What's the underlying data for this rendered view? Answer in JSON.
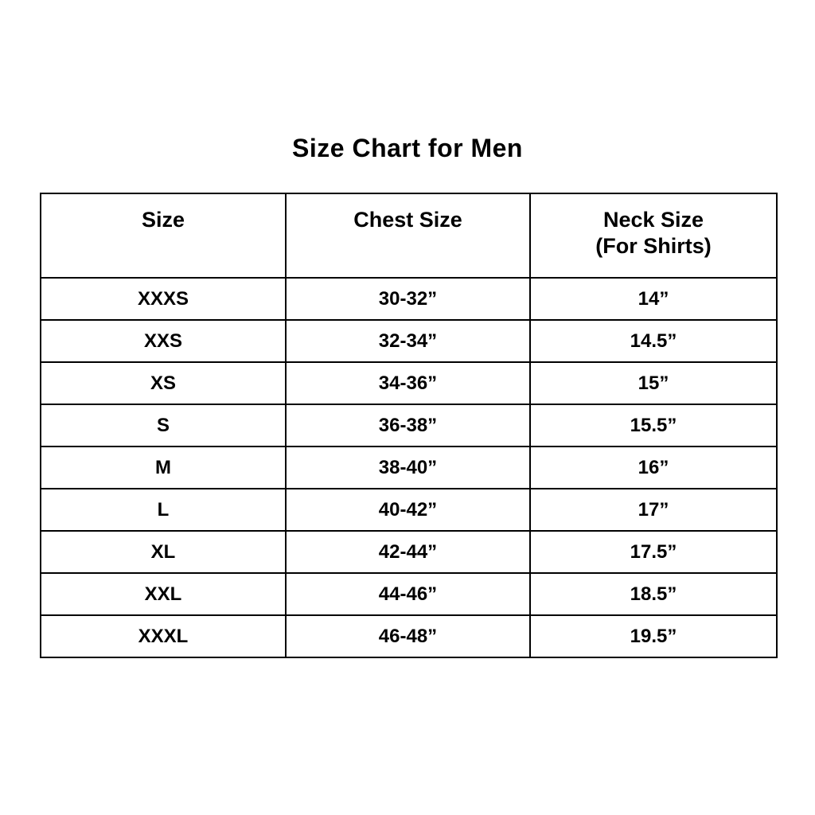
{
  "page": {
    "title": "Size Chart for Men",
    "background": "#ffffff"
  },
  "colors": {
    "text": "#000000",
    "border": "#000000",
    "background": "#ffffff"
  },
  "table": {
    "headers": [
      {
        "line1": "Size",
        "line2": ""
      },
      {
        "line1": "Chest Size",
        "line2": ""
      },
      {
        "line1": "Neck Size",
        "line2": "(For Shirts)"
      }
    ],
    "rows": [
      [
        "XXXS",
        "30-32”",
        "14”"
      ],
      [
        "XXS",
        "32-34”",
        "14.5”"
      ],
      [
        "XS",
        "34-36”",
        "15”"
      ],
      [
        "S",
        "36-38”",
        "15.5”"
      ],
      [
        "M",
        "38-40”",
        "16”"
      ],
      [
        "L",
        "40-42”",
        "17”"
      ],
      [
        "XL",
        "42-44”",
        "17.5”"
      ],
      [
        "XXL",
        "44-46”",
        "18.5”"
      ],
      [
        "XXXL",
        "46-48”",
        "19.5”"
      ]
    ]
  },
  "chart_data": {
    "type": "table",
    "title": "Size Chart for Men",
    "columns": [
      "Size",
      "Chest Size",
      "Neck Size (For Shirts)"
    ],
    "rows": [
      {
        "size": "XXXS",
        "chest_size": "30-32”",
        "neck_size": "14”"
      },
      {
        "size": "XXS",
        "chest_size": "32-34”",
        "neck_size": "14.5”"
      },
      {
        "size": "XS",
        "chest_size": "34-36”",
        "neck_size": "15”"
      },
      {
        "size": "S",
        "chest_size": "36-38”",
        "neck_size": "15.5”"
      },
      {
        "size": "M",
        "chest_size": "38-40”",
        "neck_size": "16”"
      },
      {
        "size": "L",
        "chest_size": "40-42”",
        "neck_size": "17”"
      },
      {
        "size": "XL",
        "chest_size": "42-44”",
        "neck_size": "17.5”"
      },
      {
        "size": "XXL",
        "chest_size": "44-46”",
        "neck_size": "18.5”"
      },
      {
        "size": "XXXL",
        "chest_size": "46-48”",
        "neck_size": "19.5”"
      }
    ]
  }
}
